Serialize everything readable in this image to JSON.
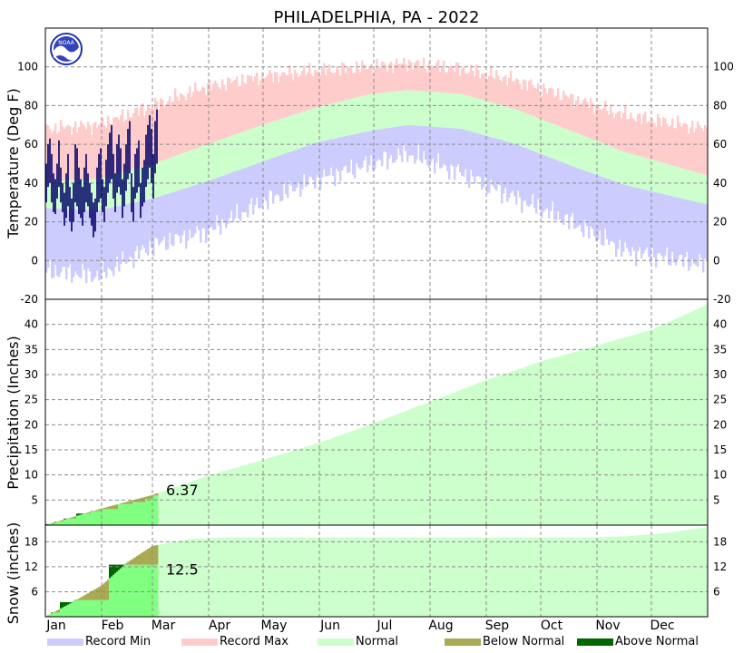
{
  "chart_data": [
    {
      "type": "bar",
      "panel": "temperature",
      "title": "PHILADELPHIA, PA - 2022",
      "ylabel": "Temperature (Deg F)",
      "ylim": [
        -20,
        120
      ],
      "yticks": [
        -20,
        0,
        20,
        40,
        60,
        80,
        100
      ],
      "months": [
        "Jan",
        "Feb",
        "Mar",
        "Apr",
        "May",
        "Jun",
        "Jul",
        "Aug",
        "Sep",
        "Oct",
        "Nov",
        "Dec"
      ],
      "days_in_year": 365,
      "observed_through_day": 62,
      "normal_high_anchors": {
        "x": [
          1,
          30,
          60,
          90,
          120,
          150,
          180,
          200,
          230,
          260,
          290,
          320,
          365
        ],
        "y": [
          41,
          42,
          50,
          60,
          70,
          79,
          86,
          88,
          86,
          78,
          67,
          56,
          44
        ]
      },
      "normal_low_anchors": {
        "x": [
          1,
          30,
          60,
          90,
          120,
          150,
          180,
          200,
          230,
          260,
          290,
          320,
          365
        ],
        "y": [
          27,
          26,
          32,
          41,
          51,
          61,
          67,
          70,
          68,
          60,
          49,
          39,
          29
        ]
      },
      "record_max_anchors": {
        "x": [
          1,
          30,
          60,
          90,
          120,
          150,
          180,
          200,
          230,
          260,
          290,
          320,
          365
        ],
        "y": [
          68,
          70,
          80,
          90,
          95,
          98,
          100,
          102,
          99,
          93,
          84,
          75,
          68
        ]
      },
      "record_min_anchors": {
        "x": [
          1,
          30,
          60,
          90,
          120,
          150,
          180,
          200,
          230,
          260,
          290,
          320,
          365
        ],
        "y": [
          -5,
          -8,
          8,
          15,
          30,
          42,
          50,
          55,
          45,
          32,
          20,
          5,
          -2
        ]
      },
      "observed_high": [
        50,
        60,
        63,
        55,
        45,
        42,
        50,
        62,
        48,
        40,
        35,
        45,
        55,
        38,
        32,
        40,
        60,
        58,
        48,
        42,
        38,
        48,
        55,
        45,
        40,
        35,
        30,
        32,
        48,
        55,
        58,
        42,
        38,
        52,
        60,
        66,
        70,
        55,
        45,
        60,
        65,
        58,
        42,
        50,
        60,
        68,
        72,
        45,
        38,
        55,
        58,
        62,
        40,
        48,
        52,
        65,
        70,
        75,
        68,
        55,
        72,
        78
      ],
      "observed_low": [
        30,
        38,
        40,
        30,
        25,
        24,
        32,
        38,
        30,
        25,
        18,
        22,
        28,
        20,
        15,
        20,
        30,
        28,
        24,
        22,
        18,
        25,
        30,
        28,
        22,
        18,
        12,
        15,
        25,
        30,
        32,
        25,
        20,
        28,
        35,
        40,
        42,
        32,
        25,
        35,
        38,
        34,
        22,
        28,
        36,
        42,
        45,
        25,
        20,
        32,
        35,
        38,
        22,
        28,
        30,
        38,
        42,
        48,
        40,
        32,
        45,
        50
      ]
    },
    {
      "type": "area",
      "panel": "precipitation",
      "ylabel": "Precipitation (Inches)",
      "ylim": [
        0,
        45
      ],
      "yticks": [
        5,
        10,
        15,
        20,
        25,
        30,
        35,
        40
      ],
      "normal_cumulative_anchors": {
        "x": [
          0,
          31,
          59,
          90,
          120,
          151,
          181,
          212,
          243,
          273,
          304,
          334,
          365
        ],
        "y": [
          0,
          3.3,
          6.0,
          9.9,
          13.0,
          16.4,
          20.3,
          24.6,
          28.9,
          32.6,
          35.8,
          38.9,
          44.0
        ]
      },
      "observed_cumulative": {
        "x": [
          0,
          5,
          10,
          17,
          25,
          31,
          40,
          48,
          55,
          59,
          62
        ],
        "y": [
          0.2,
          0.7,
          1.3,
          2.3,
          2.8,
          3.2,
          4.2,
          4.6,
          5.2,
          5.9,
          6.37
        ]
      },
      "annotation": "6.37"
    },
    {
      "type": "area",
      "panel": "snow",
      "ylabel": "Snow (inches)",
      "ylim": [
        0,
        22
      ],
      "yticks": [
        6,
        12,
        18
      ],
      "normal_cumulative_anchors": {
        "x": [
          0,
          15,
          31,
          45,
          59,
          80,
          100,
          150,
          300,
          320,
          340,
          365
        ],
        "y": [
          0,
          3.5,
          7.5,
          13.0,
          17.0,
          18.7,
          19.0,
          19.0,
          19.0,
          19.3,
          20.0,
          21.5
        ]
      },
      "observed_cumulative": {
        "x": [
          0,
          2,
          3,
          8,
          16,
          20,
          25,
          35,
          50,
          59,
          62
        ],
        "y": [
          0,
          0.5,
          1.0,
          3.5,
          4.0,
          4.0,
          4.0,
          12.5,
          12.5,
          12.5,
          12.5
        ]
      },
      "annotation": "12.5"
    }
  ],
  "legend": {
    "record_min": {
      "label": "Record Min",
      "color": "#ccccff"
    },
    "record_max": {
      "label": "Record Max",
      "color": "#ffcccc"
    },
    "normal": {
      "label": "Normal",
      "color": "#ccffcc"
    },
    "below_normal": {
      "label": "Below Normal",
      "color": "#aaaa55"
    },
    "above_normal": {
      "label": "Above Normal",
      "color": "#006600"
    }
  },
  "colors": {
    "observed": "#000066",
    "observed_precip": "#80ff80"
  }
}
